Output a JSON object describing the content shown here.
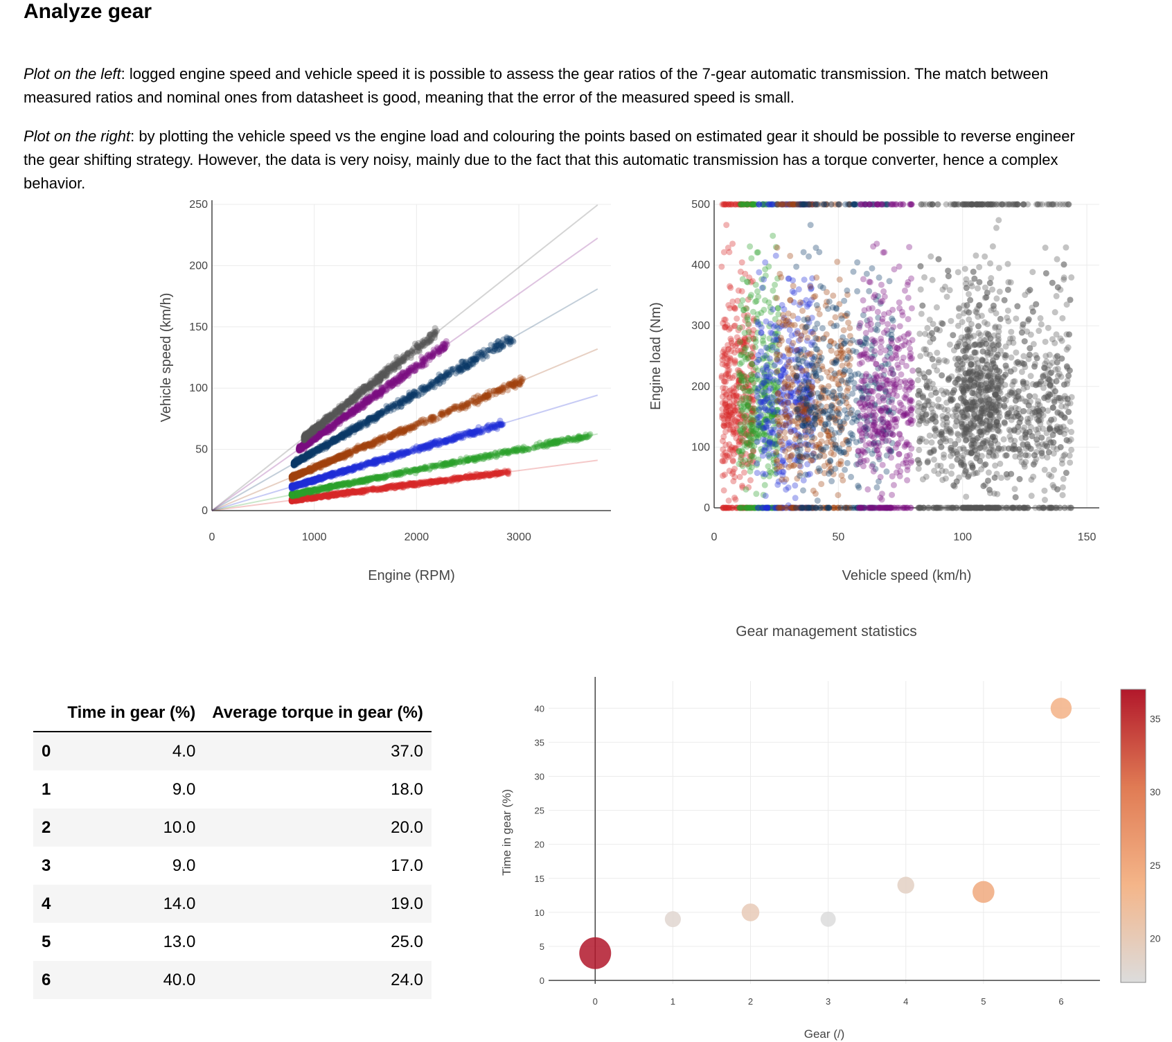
{
  "heading": "Analyze gear",
  "para1": {
    "italic": "Plot on the left",
    "line1": ": logged engine speed and vehicle speed it is possible to assess the gear ratios of the 7-gear automatic transmission. The match between",
    "line2": "measured ratios and nominal ones from datasheet is good, meaning that the error of the measured speed is small."
  },
  "para2": {
    "italic": "Plot on the right",
    "line1": ": by plotting the vehicle speed vs the engine load and colouring the points based on estimated gear it should be possible to reverse engineer",
    "line2": "the gear shifting strategy. However, the data is very noisy, mainly due to the fact that this automatic transmission has a torque converter, hence a complex",
    "line3": "behavior."
  },
  "gear_colors": [
    "#d62728",
    "#2ca02c",
    "#1f2fd8",
    "#a0420f",
    "#0b3a66",
    "#7a0f82",
    "#555555"
  ],
  "table": {
    "headers": [
      "Time in gear (%)",
      "Average torque in gear (%)"
    ],
    "rows": [
      {
        "idx": "0",
        "time": "4.0",
        "torque": "37.0"
      },
      {
        "idx": "1",
        "time": "9.0",
        "torque": "18.0"
      },
      {
        "idx": "2",
        "time": "10.0",
        "torque": "20.0"
      },
      {
        "idx": "3",
        "time": "9.0",
        "torque": "17.0"
      },
      {
        "idx": "4",
        "time": "14.0",
        "torque": "19.0"
      },
      {
        "idx": "5",
        "time": "13.0",
        "torque": "25.0"
      },
      {
        "idx": "6",
        "time": "40.0",
        "torque": "24.0"
      }
    ]
  },
  "chart_data": [
    {
      "type": "scatter",
      "title": "",
      "xlabel": "Engine (RPM)",
      "ylabel": "Vehicle speed (km/h)",
      "xlim": [
        0,
        3900
      ],
      "ylim": [
        0,
        250
      ],
      "xticks": [
        0,
        1000,
        2000,
        3000
      ],
      "yticks": [
        0,
        50,
        100,
        150,
        200,
        250
      ],
      "grid": true,
      "series": [
        {
          "gear": 0,
          "speed_per_rpm": 0.0109,
          "rpm_range": [
            780,
            2900
          ]
        },
        {
          "gear": 1,
          "speed_per_rpm": 0.0166,
          "rpm_range": [
            780,
            3700
          ]
        },
        {
          "gear": 2,
          "speed_per_rpm": 0.025,
          "rpm_range": [
            780,
            2850
          ]
        },
        {
          "gear": 3,
          "speed_per_rpm": 0.035,
          "rpm_range": [
            780,
            3050
          ]
        },
        {
          "gear": 4,
          "speed_per_rpm": 0.048,
          "rpm_range": [
            800,
            2950
          ]
        },
        {
          "gear": 5,
          "speed_per_rpm": 0.059,
          "rpm_range": [
            850,
            2300
          ]
        },
        {
          "gear": 6,
          "speed_per_rpm": 0.0662,
          "rpm_range": [
            900,
            2200
          ]
        }
      ],
      "reference_lines_slope": [
        0.0109,
        0.0166,
        0.025,
        0.035,
        0.048,
        0.059,
        0.0662
      ]
    },
    {
      "type": "scatter",
      "title": "",
      "xlabel": "Vehicle speed (km/h)",
      "ylabel": "Engine load (Nm)",
      "xlim": [
        0,
        155
      ],
      "ylim": [
        0,
        500
      ],
      "xticks": [
        0,
        50,
        100,
        150
      ],
      "yticks": [
        0,
        100,
        200,
        300,
        400,
        500
      ],
      "grid": true,
      "series": [
        {
          "gear": 0,
          "speed_range": [
            3,
            16
          ]
        },
        {
          "gear": 1,
          "speed_range": [
            10,
            26
          ]
        },
        {
          "gear": 2,
          "speed_range": [
            17,
            40
          ]
        },
        {
          "gear": 3,
          "speed_range": [
            25,
            55
          ]
        },
        {
          "gear": 4,
          "speed_range": [
            33,
            72
          ]
        },
        {
          "gear": 5,
          "speed_range": [
            58,
            80
          ]
        },
        {
          "gear": 6,
          "speed_range": [
            80,
            145
          ]
        }
      ]
    },
    {
      "type": "scatter",
      "title": "Gear management statistics",
      "xlabel": "Gear (/)",
      "ylabel": "Time in gear (%)",
      "xlim": [
        -0.6,
        6.5
      ],
      "ylim": [
        -0.5,
        44
      ],
      "xticks": [
        0,
        1,
        2,
        3,
        4,
        5,
        6
      ],
      "yticks": [
        0,
        5,
        10,
        15,
        20,
        25,
        30,
        35,
        40
      ],
      "grid": true,
      "x": [
        0,
        1,
        2,
        3,
        4,
        5,
        6
      ],
      "y": [
        4.0,
        9.0,
        10.0,
        9.0,
        14.0,
        13.0,
        40.0
      ],
      "color_value": [
        37.0,
        18.0,
        20.0,
        17.0,
        19.0,
        25.0,
        24.0
      ],
      "colorbar": {
        "ticks": [
          20,
          25,
          30,
          35
        ],
        "range": [
          17,
          37
        ],
        "colors": [
          "#dcdcdc",
          "#f4b589",
          "#e07b54",
          "#b2182b"
        ]
      }
    }
  ]
}
